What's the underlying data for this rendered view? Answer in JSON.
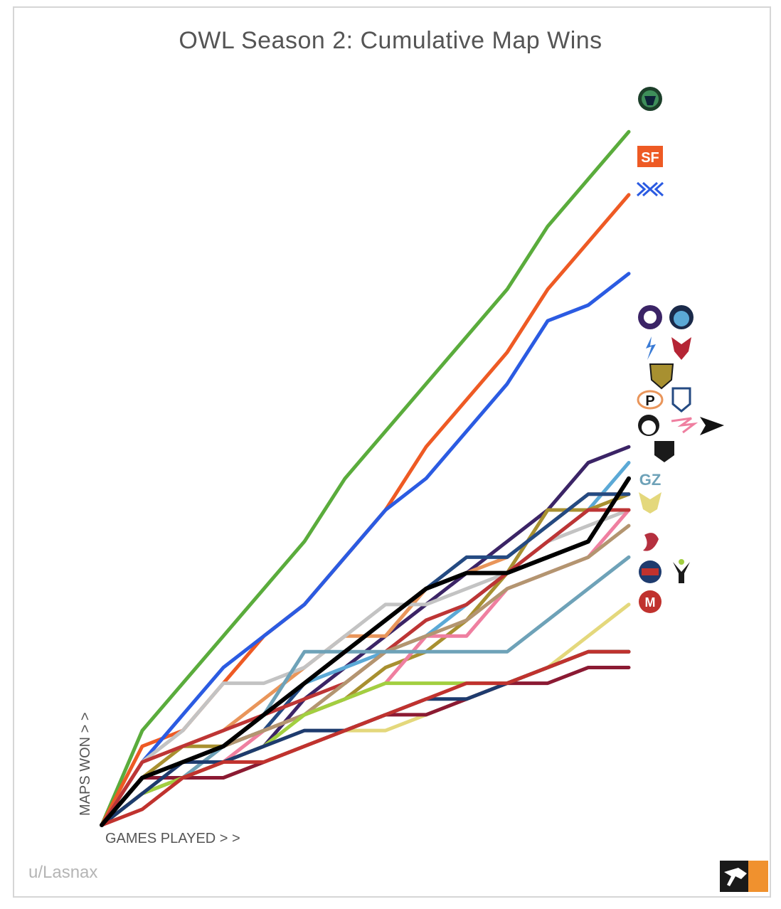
{
  "title": "OWL Season 2: Cumulative Map Wins",
  "credit": "u/Lasnax",
  "chart_data": {
    "type": "line",
    "title": "OWL Season 2: Cumulative Map Wins",
    "xlabel": "GAMES PLAYED > >",
    "ylabel": "MAPS WON > >",
    "x": [
      0,
      1,
      2,
      3,
      4,
      5,
      6,
      7,
      8,
      9,
      10,
      11,
      12,
      13
    ],
    "xlim": [
      0,
      13
    ],
    "ylim": [
      0,
      46
    ],
    "grid": false,
    "legend": "team logos at right end of each line",
    "series": [
      {
        "color": "#5aac3c",
        "logo": "vancouver-titans-logo",
        "values": [
          0,
          6,
          9,
          12,
          15,
          18,
          22,
          25,
          28,
          31,
          34,
          38,
          41,
          44
        ]
      },
      {
        "color": "#ee5a24",
        "logo": "san-francisco-shock-logo",
        "values": [
          0,
          5,
          6,
          9,
          12,
          14,
          17,
          20,
          24,
          27,
          30,
          34,
          37,
          40
        ]
      },
      {
        "color": "#2b5be2",
        "logo": "new-york-excelsior-logo",
        "values": [
          0,
          4,
          7,
          10,
          12,
          14,
          17,
          20,
          22,
          25,
          28,
          32,
          33,
          35
        ]
      },
      {
        "color": "#3b2466",
        "logo": "los-angeles-gladiators-logo",
        "values": [
          0,
          2,
          3,
          4,
          5,
          8,
          10,
          12,
          14,
          16,
          18,
          20,
          23,
          24
        ]
      },
      {
        "color": "#5ba9d6",
        "logo": "london-spitfire-logo",
        "values": [
          0,
          3,
          4,
          5,
          7,
          9,
          10,
          11,
          12,
          14,
          16,
          18,
          20,
          23
        ]
      },
      {
        "color": "#a89030",
        "logo": "seoul-dynasty-logo",
        "values": [
          0,
          3,
          5,
          5,
          6,
          7,
          8,
          10,
          11,
          13,
          16,
          20,
          20,
          21
        ]
      },
      {
        "color": "#e9955a",
        "logo": "philadelphia-fusion-logo",
        "values": [
          0,
          4,
          5,
          6,
          8,
          10,
          12,
          12,
          15,
          16,
          17,
          19,
          21,
          21
        ]
      },
      {
        "color": "#244a82",
        "logo": "boston-uprising-logo",
        "values": [
          0,
          3,
          4,
          5,
          6,
          9,
          11,
          13,
          15,
          17,
          17,
          19,
          21,
          21
        ]
      },
      {
        "color": "#c3c3c3",
        "logo": "chengdu-hunters-logo",
        "values": [
          0,
          4,
          6,
          9,
          9,
          10,
          12,
          14,
          14,
          15,
          16,
          18,
          19,
          20
        ]
      },
      {
        "color": "#ef7fa0",
        "logo": "hangzhou-spark-logo",
        "values": [
          0,
          2,
          3,
          4,
          6,
          7,
          8,
          9,
          12,
          12,
          15,
          16,
          17,
          20
        ]
      },
      {
        "color": "#bd3535",
        "logo": "shanghai-dragons-logo",
        "values": [
          0,
          4,
          5,
          6,
          7,
          8,
          9,
          11,
          13,
          14,
          16,
          18,
          20,
          20
        ]
      },
      {
        "color": "#b39570",
        "logo": "atlanta-reign-logo",
        "values": [
          0,
          2,
          3,
          5,
          6,
          7,
          9,
          11,
          12,
          13,
          15,
          16,
          17,
          19
        ]
      },
      {
        "color": "#000000",
        "logo": "toronto-defiant-logo",
        "values": [
          0,
          3,
          4,
          5,
          7,
          9,
          11,
          13,
          15,
          16,
          16,
          17,
          18,
          22
        ]
      },
      {
        "color": "#6ea2b8",
        "logo": "guangzhou-charge-logo",
        "values": [
          0,
          2,
          3,
          5,
          7,
          11,
          11,
          11,
          11,
          11,
          11,
          13,
          15,
          17
        ]
      },
      {
        "color": "#e4d87c",
        "logo": "los-angeles-valiant-logo",
        "values": [
          0,
          2,
          3,
          3,
          4,
          5,
          6,
          6,
          7,
          8,
          9,
          10,
          12,
          14
        ]
      },
      {
        "color": "#8b1a33",
        "logo": "paris-eternal-logo",
        "values": [
          0,
          3,
          3,
          3,
          4,
          5,
          6,
          7,
          7,
          8,
          9,
          9,
          10,
          10
        ]
      },
      {
        "color": "#a2cf40",
        "logo": "houston-outlaws-logo",
        "values": [
          0,
          2,
          3,
          4,
          5,
          7,
          8,
          9,
          9,
          9,
          9,
          10,
          11,
          11
        ]
      },
      {
        "color": "#1e3b6e",
        "logo": "washington-justice-logo",
        "values": [
          0,
          2,
          4,
          4,
          5,
          6,
          6,
          7,
          8,
          8,
          9,
          10,
          11,
          11
        ]
      },
      {
        "color": "#c0322e",
        "logo": "florida-mayhem-logo",
        "values": [
          0,
          1,
          3,
          4,
          4,
          5,
          6,
          7,
          8,
          9,
          9,
          10,
          11,
          11
        ]
      }
    ]
  }
}
